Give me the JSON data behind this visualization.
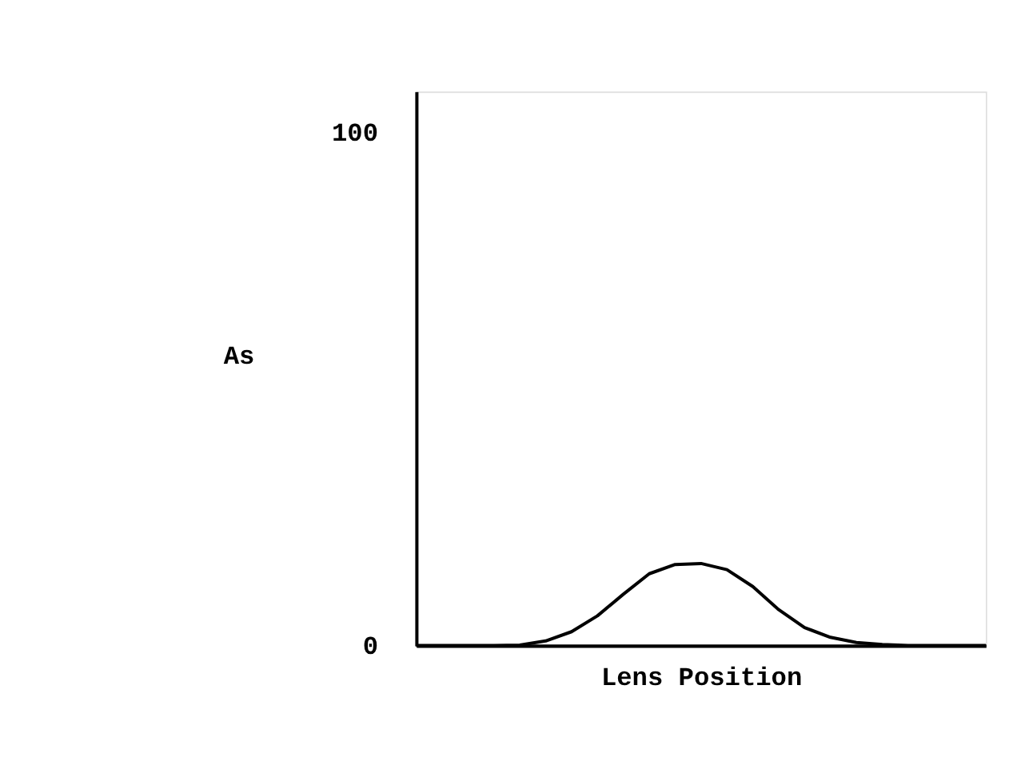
{
  "chart_data": {
    "type": "line",
    "xlabel": "Lens Position",
    "ylabel": "As",
    "categories": [
      null,
      null,
      null,
      null,
      null,
      null,
      null,
      null,
      null,
      null,
      null,
      null,
      null,
      null,
      null,
      null,
      null,
      null,
      null,
      null,
      null,
      null,
      null
    ],
    "series": [
      {
        "color": "#000000",
        "values": [
          0,
          0,
          0,
          0,
          0.1,
          0.9,
          2.7,
          5.8,
          10,
          14,
          15.8,
          16,
          14.8,
          11.5,
          7,
          3.5,
          1.6,
          0.6,
          0.2,
          0,
          0,
          0,
          0
        ]
      }
    ],
    "ylim": [
      0,
      108
    ],
    "yticks": [
      0,
      100
    ],
    "grid": false,
    "marker": "none",
    "line_style": "solid"
  }
}
